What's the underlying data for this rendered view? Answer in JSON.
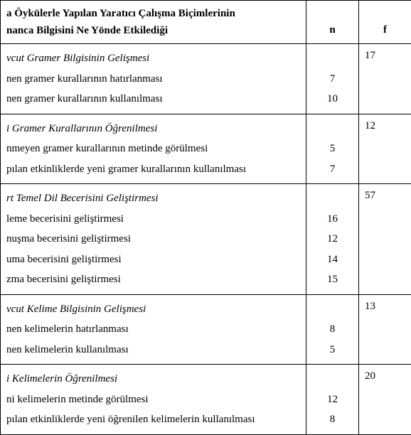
{
  "header": {
    "title_line1": "a Öykülerle Yapılan Yaratıcı Çalışma Biçimlerinin",
    "title_line2": "nanca Bilgisini Ne Yönde Etkilediği",
    "col_n": "n",
    "col_f": "f"
  },
  "sections": [
    {
      "category": "vcut Gramer Bilgisinin Gelişmesi",
      "f": "17",
      "items": [
        {
          "label": "nen gramer kurallarının hatırlanması",
          "n": "7"
        },
        {
          "label": "nen gramer kurallarının kullanılması",
          "n": "10"
        }
      ]
    },
    {
      "category": "i Gramer Kurallarının Öğrenilmesi",
      "f": "12",
      "items": [
        {
          "label": "nmeyen gramer kurallarının metinde görülmesi",
          "n": "5"
        },
        {
          "label": "pılan etkinliklerde yeni gramer kurallarının kullanılması",
          "n": "7"
        }
      ]
    },
    {
      "category": "rt Temel Dil Becerisini Geliştirmesi",
      "f": "57",
      "items": [
        {
          "label": "leme becerisini geliştirmesi",
          "n": "16"
        },
        {
          "label": "nuşma becerisini geliştirmesi",
          "n": "12"
        },
        {
          "label": "uma becerisini geliştirmesi",
          "n": "14"
        },
        {
          "label": "zma becerisini geliştirmesi",
          "n": "15"
        }
      ]
    },
    {
      "category": "vcut Kelime Bilgisinin Gelişmesi",
      "f": "13",
      "items": [
        {
          "label": "nen kelimelerin hatırlanması",
          "n": "8"
        },
        {
          "label": "nen kelimelerin kullanılması",
          "n": "5"
        }
      ]
    },
    {
      "category": "i Kelimelerin Öğrenilmesi",
      "f": "20",
      "items": [
        {
          "label": "ni kelimelerin metinde görülmesi",
          "n": "12"
        },
        {
          "label": "pılan etkinliklerde yeni öğrenilen kelimelerin kullanılması",
          "n": "8"
        }
      ]
    }
  ]
}
